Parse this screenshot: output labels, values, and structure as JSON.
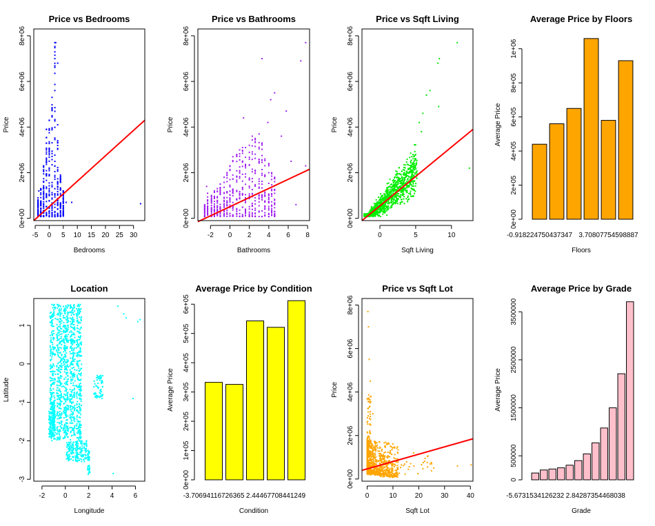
{
  "chart_data": [
    {
      "id": "bedrooms",
      "type": "scatter",
      "title": "Price vs Bedrooms",
      "xlabel": "Bedrooms",
      "ylabel": "Price",
      "xlim": [
        -5.5,
        34
      ],
      "ylim": [
        -100000,
        8300000
      ],
      "xticks": [
        -5,
        0,
        5,
        10,
        15,
        20,
        25,
        30
      ],
      "xtick_labels": [
        "-5",
        "0",
        "5",
        "10",
        "15",
        "20",
        "25",
        "30"
      ],
      "yticks": [
        0,
        2000000,
        4000000,
        6000000,
        8000000
      ],
      "ytick_labels": [
        "0e+00",
        "2e+06",
        "4e+06",
        "6e+06",
        "8e+06"
      ],
      "point_color": "#0000ff",
      "cloud": {
        "kind": "columns",
        "columns": [
          -4,
          -3,
          -2,
          -1,
          0,
          1,
          2,
          3,
          4,
          5
        ],
        "tops": [
          900000,
          1300000,
          2300000,
          3900000,
          4300000,
          5300000,
          7700000,
          3400000,
          1900000,
          1200000
        ],
        "base": 75000,
        "n": 420
      },
      "points": [
        [
          -3.7,
          1200000
        ],
        [
          -2,
          1600000
        ],
        [
          0,
          3900000
        ],
        [
          1,
          4500000
        ],
        [
          2,
          5600000
        ],
        [
          2,
          7000000
        ],
        [
          2.3,
          7700000
        ],
        [
          3,
          6800000
        ],
        [
          3,
          4100000
        ],
        [
          5,
          900000
        ],
        [
          6,
          700000
        ],
        [
          8,
          700000
        ],
        [
          32.5,
          640000
        ]
      ],
      "fit": {
        "x": [
          -5.5,
          34
        ],
        "y": [
          -100000,
          4300000
        ],
        "color": "#ff0000"
      }
    },
    {
      "id": "bathrooms",
      "type": "scatter",
      "title": "Price vs Bathrooms",
      "xlabel": "Bathrooms",
      "ylabel": "Price",
      "xlim": [
        -3.3,
        8.2
      ],
      "ylim": [
        -100000,
        8300000
      ],
      "xticks": [
        -2,
        0,
        2,
        4,
        6,
        8
      ],
      "xtick_labels": [
        "-2",
        "0",
        "2",
        "4",
        "6",
        "8"
      ],
      "yticks": [
        0,
        2000000,
        4000000,
        6000000,
        8000000
      ],
      "ytick_labels": [
        "0e+00",
        "2e+06",
        "4e+06",
        "6e+06",
        "8e+06"
      ],
      "point_color": "#a020f0",
      "cloud": {
        "kind": "columns",
        "columns": [
          -2.6,
          -2.3,
          -1.9,
          -1.6,
          -1.3,
          -1.0,
          -0.6,
          -0.3,
          0.0,
          0.3,
          0.7,
          1.0,
          1.3,
          1.6,
          2.0,
          2.3,
          2.6,
          3.0,
          3.3,
          3.6,
          4.0,
          4.3,
          4.6
        ],
        "tops": [
          600000,
          1100000,
          1000000,
          1200000,
          1300000,
          1500000,
          1800000,
          2000000,
          2300000,
          2700000,
          2800000,
          3000000,
          3100000,
          3100000,
          3200000,
          3600000,
          3500000,
          3700000,
          3300000,
          2600000,
          2400000,
          2000000,
          1800000
        ],
        "base": 75000,
        "n": 520
      },
      "points": [
        [
          1.4,
          4400000
        ],
        [
          3.3,
          7000000
        ],
        [
          4.6,
          5500000
        ],
        [
          4.2,
          5200000
        ],
        [
          5.8,
          4700000
        ],
        [
          7.3,
          6900000
        ],
        [
          7.8,
          7700000
        ],
        [
          7.8,
          2300000
        ],
        [
          6.3,
          2500000
        ],
        [
          6.8,
          600000
        ],
        [
          -2.4,
          1400000
        ],
        [
          5.3,
          3600000
        ],
        [
          3.9,
          4200000
        ]
      ],
      "fit": {
        "x": [
          -3.3,
          8.2
        ],
        "y": [
          -150000,
          2150000
        ],
        "color": "#ff0000"
      }
    },
    {
      "id": "sqftliving",
      "type": "scatter",
      "title": "Price vs Sqft Living",
      "xlabel": "Sqft Living",
      "ylabel": "Price",
      "xlim": [
        -2.5,
        13
      ],
      "ylim": [
        -100000,
        8300000
      ],
      "xticks": [
        0,
        5,
        10
      ],
      "xtick_labels": [
        "0",
        "5",
        "10"
      ],
      "yticks": [
        0,
        2000000,
        4000000,
        6000000,
        8000000
      ],
      "ytick_labels": [
        "0e+00",
        "2e+06",
        "4e+06",
        "6e+06",
        "8e+06"
      ],
      "point_color": "#00ee00",
      "cloud": {
        "kind": "wedge",
        "x0": -2.2,
        "x1": 5.2,
        "n": 1100
      },
      "points": [
        [
          5.5,
          4200000
        ],
        [
          6.0,
          4600000
        ],
        [
          6.5,
          5400000
        ],
        [
          7.0,
          5600000
        ],
        [
          8.1,
          6800000
        ],
        [
          8.3,
          7000000
        ],
        [
          10.8,
          7700000
        ],
        [
          8.2,
          4900000
        ],
        [
          12.5,
          2200000
        ],
        [
          5.8,
          3800000
        ]
      ],
      "fit": {
        "x": [
          -2.5,
          13
        ],
        "y": [
          -100000,
          3900000
        ],
        "color": "#ff0000"
      }
    },
    {
      "id": "floors",
      "type": "bar",
      "title": "Average Price by Floors",
      "xlabel": "Floors",
      "ylabel": "Average Price",
      "ylim": [
        0,
        1100000
      ],
      "values": [
        440000,
        560000,
        650000,
        1060000,
        580000,
        930000
      ],
      "yticks": [
        0,
        200000,
        400000,
        600000,
        800000,
        1000000
      ],
      "ytick_labels": [
        "0e+00",
        "2e+05",
        "4e+05",
        "6e+05",
        "8e+05",
        "1e+06"
      ],
      "xtick_labels": [
        {
          "bar": 0,
          "text": "-0.918224750437347"
        },
        {
          "bar": 4,
          "text": "3.70807754598887"
        }
      ],
      "bar_color": "#ffa500"
    },
    {
      "id": "location",
      "type": "scatter",
      "title": "Location",
      "xlabel": "Longitude",
      "ylabel": "Latitude",
      "xlim": [
        -2.7,
        6.8
      ],
      "ylim": [
        -3.05,
        1.7
      ],
      "xticks": [
        -2,
        0,
        2,
        4,
        6
      ],
      "xtick_labels": [
        "-2",
        "0",
        "2",
        "4",
        "6"
      ],
      "yticks": [
        -3,
        -2,
        -1,
        0,
        1
      ],
      "ytick_labels": [
        "-3",
        "-2",
        "-1",
        "0",
        "1"
      ],
      "point_color": "#00ffff",
      "cloud": {
        "kind": "blob",
        "n": 1500
      },
      "points": [
        [
          4.5,
          1.5
        ],
        [
          5.0,
          1.3
        ],
        [
          5.2,
          1.2
        ],
        [
          6.2,
          1.1
        ],
        [
          6.4,
          1.15
        ],
        [
          5.8,
          -0.9
        ],
        [
          4.1,
          -2.85
        ],
        [
          3.0,
          -0.3
        ],
        [
          3.2,
          -0.8
        ]
      ],
      "fit": null
    },
    {
      "id": "condition",
      "type": "bar",
      "title": "Average Price by Condition",
      "xlabel": "Condition",
      "ylabel": "Average Price",
      "ylim": [
        0,
        610000
      ],
      "values": [
        333000,
        326000,
        543000,
        521000,
        612000
      ],
      "yticks": [
        0,
        100000,
        200000,
        300000,
        400000,
        500000,
        600000
      ],
      "ytick_labels": [
        "0e+00",
        "1e+05",
        "2e+05",
        "3e+05",
        "4e+05",
        "5e+05",
        "6e+05"
      ],
      "xtick_labels": [
        {
          "bar": 0,
          "text": "-3.70694116726365"
        },
        {
          "bar": 3,
          "text": "2.44467708441249"
        }
      ],
      "bar_color": "#ffff00"
    },
    {
      "id": "sqftlot",
      "type": "scatter",
      "title": "Price vs Sqft Lot",
      "xlabel": "Sqft Lot",
      "ylabel": "Price",
      "xlim": [
        -2,
        41
      ],
      "ylim": [
        -100000,
        8300000
      ],
      "xticks": [
        0,
        10,
        20,
        30,
        40
      ],
      "xtick_labels": [
        "0",
        "10",
        "20",
        "30",
        "40"
      ],
      "yticks": [
        0,
        2000000,
        4000000,
        6000000,
        8000000
      ],
      "ytick_labels": [
        "0e+00",
        "2e+06",
        "4e+06",
        "6e+06",
        "8e+06"
      ],
      "point_color": "#ffa500",
      "cloud": {
        "kind": "lot",
        "n": 1000
      },
      "points": [
        [
          0.3,
          7700000
        ],
        [
          0.5,
          7000000
        ],
        [
          0.8,
          5500000
        ],
        [
          1.2,
          4500000
        ],
        [
          1.5,
          3800000
        ],
        [
          2.2,
          3000000
        ],
        [
          25,
          700000
        ],
        [
          35,
          600000
        ],
        [
          40.3,
          650000
        ],
        [
          12,
          900000
        ],
        [
          18,
          1200000
        ]
      ],
      "fit": {
        "x": [
          -2,
          41
        ],
        "y": [
          400000,
          1850000
        ],
        "color": "#ff0000"
      }
    },
    {
      "id": "grade",
      "type": "bar",
      "title": "Average Price by Grade",
      "xlabel": "Grade",
      "ylabel": "Average Price",
      "ylim": [
        0,
        3720000
      ],
      "values": [
        142000,
        205000,
        225000,
        250000,
        305000,
        400000,
        540000,
        770000,
        1080000,
        1500000,
        2210000,
        3710000
      ],
      "yticks": [
        0,
        500000,
        1500000,
        2500000,
        3500000
      ],
      "ytick_labels": [
        "0",
        "500000",
        "1500000",
        "2500000",
        "3500000"
      ],
      "xtick_labels": [
        {
          "bar": 0,
          "text": "-5.6731534126232"
        },
        {
          "bar": 7,
          "text": "2.84287354468038"
        }
      ],
      "bar_color": "#ffc0cb"
    }
  ]
}
